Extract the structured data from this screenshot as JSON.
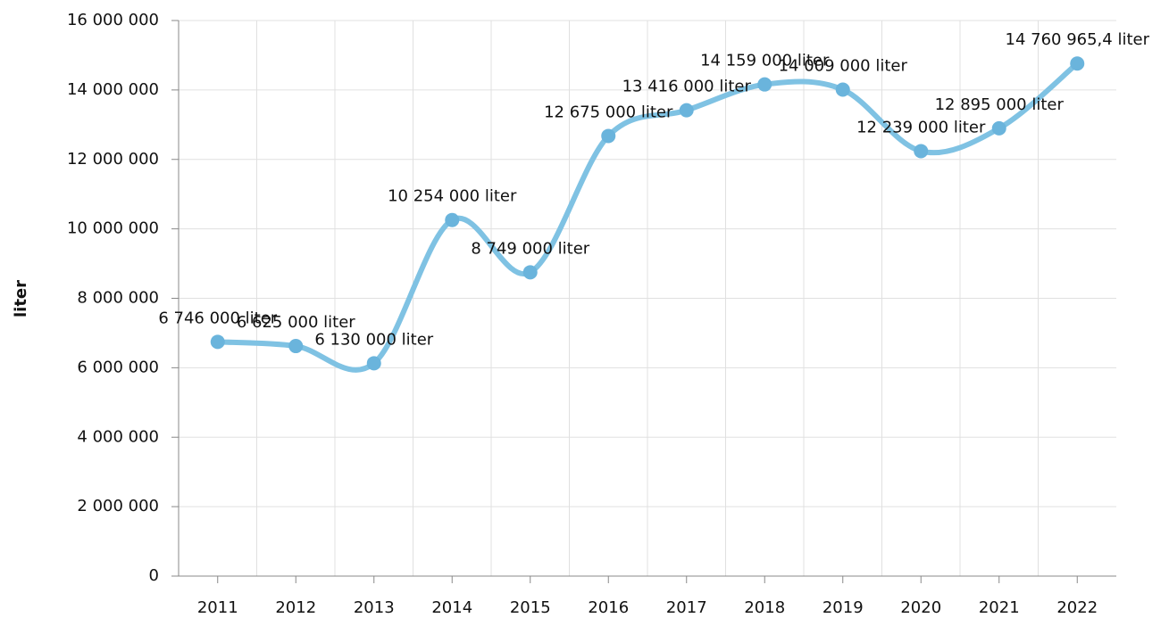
{
  "chart_data": {
    "type": "line",
    "y_label": "liter",
    "categories": [
      "2011",
      "2012",
      "2013",
      "2014",
      "2015",
      "2016",
      "2017",
      "2018",
      "2019",
      "2020",
      "2021",
      "2022"
    ],
    "series": [
      {
        "name": "liter",
        "color": "#7fc2e3",
        "values": [
          6746000,
          6625000,
          6130000,
          10254000,
          8749000,
          12675000,
          13416000,
          14159000,
          14009000,
          12239000,
          12895000,
          14760965.4
        ],
        "value_labels": [
          "6 746 000 liter",
          "6 625 000 liter",
          "6 130 000 liter",
          "10 254 000 liter",
          "8 749 000 liter",
          "12 675 000 liter",
          "13 416 000 liter",
          "14 159 000 liter",
          "14 009 000 liter",
          "12 239 000 liter",
          "12 895 000 liter",
          "14 760 965,4 liter"
        ]
      }
    ],
    "ylim": [
      0,
      16000000
    ],
    "yticks": [
      0,
      {
        "value": 2000000,
        "label": "2 000 000"
      },
      {
        "value": 4000000,
        "label": "4 000 000"
      },
      {
        "value": 6000000,
        "label": "6 000 000"
      },
      {
        "value": 8000000,
        "label": "8 000 000"
      },
      {
        "value": 10000000,
        "label": "10 000 000"
      },
      {
        "value": 12000000,
        "label": "12 000 000"
      },
      {
        "value": 14000000,
        "label": "14 000 000"
      },
      {
        "value": 16000000,
        "label": "16 000 000"
      }
    ],
    "grid": true
  }
}
